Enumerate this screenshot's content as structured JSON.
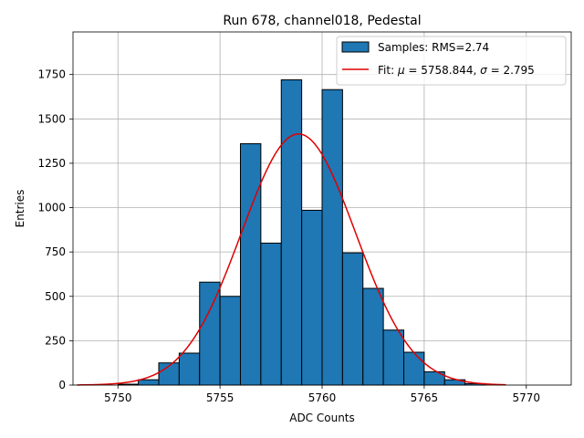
{
  "chart_data": {
    "type": "bar",
    "title": "Run 678, channel018, Pedestal",
    "xlabel": "ADC Counts",
    "ylabel": "Entries",
    "xlim": [
      5747.8,
      5772.2
    ],
    "ylim": [
      0,
      1990
    ],
    "xticks": [
      5750,
      5755,
      5760,
      5765,
      5770
    ],
    "yticks": [
      0,
      250,
      500,
      750,
      1000,
      1250,
      1500,
      1750
    ],
    "grid": true,
    "legend_position": "top-right",
    "bin_width": 1,
    "bin_left_edges": [
      5750,
      5751,
      5752,
      5753,
      5754,
      5755,
      5756,
      5757,
      5758,
      5759,
      5760,
      5761,
      5762,
      5763,
      5764,
      5765,
      5766,
      5767
    ],
    "series": [
      {
        "name": "Samples: RMS=2.74",
        "kind": "histogram",
        "color": "#1f77b4",
        "edgecolor": "#000000",
        "values": [
          5,
          30,
          125,
          180,
          580,
          500,
          1360,
          800,
          1720,
          985,
          1665,
          745,
          545,
          310,
          185,
          75,
          30,
          8
        ]
      },
      {
        "name": "Fit: μ = 5758.844, σ = 2.795",
        "kind": "gaussian-fit",
        "color": "#e00000",
        "mu": 5758.844,
        "sigma": 2.795,
        "amplitude": 1415,
        "x_range": [
          5748,
          5769
        ]
      }
    ],
    "legend": [
      {
        "label": "Samples: RMS=2.74",
        "style": "patch"
      },
      {
        "label_prefix": "Fit: ",
        "mu_symbol": "μ",
        "mu_text": " = 5758.844, ",
        "sigma_symbol": "σ",
        "sigma_text": " = 2.795",
        "style": "line"
      }
    ]
  }
}
